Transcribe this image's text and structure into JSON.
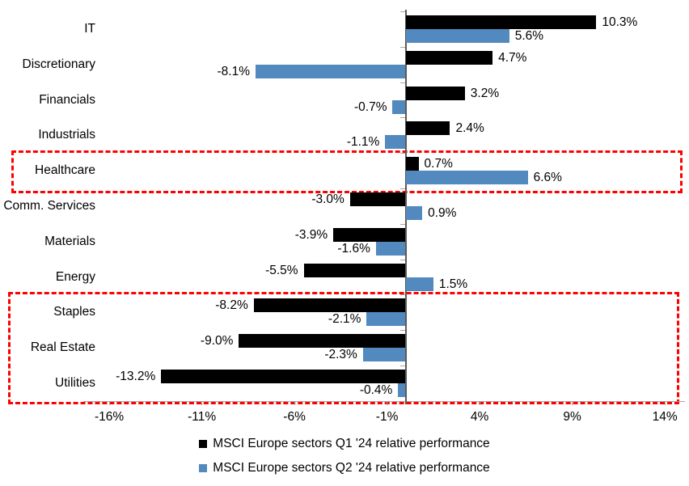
{
  "chart_data": {
    "type": "bar",
    "orientation": "horizontal",
    "title": "",
    "categories": [
      "IT",
      "Discretionary",
      "Financials",
      "Industrials",
      "Healthcare",
      "Comm. Services",
      "Materials",
      "Energy",
      "Staples",
      "Real Estate",
      "Utilities"
    ],
    "series": [
      {
        "name": "MSCI Europe sectors Q1 '24 relative performance",
        "color": "#000000",
        "values": [
          10.3,
          4.7,
          3.2,
          2.4,
          0.7,
          -3.0,
          -3.9,
          -5.5,
          -8.2,
          -9.0,
          -13.2
        ]
      },
      {
        "name": "MSCI Europe sectors Q2 '24 relative performance",
        "color": "#5289BE",
        "values": [
          5.6,
          -8.1,
          -0.7,
          -1.1,
          6.6,
          0.9,
          -1.6,
          1.5,
          -2.1,
          -2.3,
          -0.4
        ]
      }
    ],
    "data_labels": "on",
    "label_format": "one-decimal-percent",
    "x_ticks": [
      "-16%",
      "-11%",
      "-6%",
      "-1%",
      "4%",
      "9%",
      "14%"
    ],
    "x_tick_values": [
      -16,
      -11,
      -6,
      -1,
      4,
      9,
      14
    ],
    "xlim": [
      -17.4,
      15.1
    ],
    "grid": "off",
    "legend_position": "bottom",
    "axis_color": "#a6a6a6",
    "category_axis_color": "#595959"
  },
  "annotations": {
    "highlight_color": "#fe0000",
    "boxes": [
      {
        "name": "healthcare-highlight",
        "start_category": "Healthcare",
        "end_category": "Healthcare"
      },
      {
        "name": "defensives-highlight",
        "start_category": "Staples",
        "end_category": "Utilities"
      }
    ]
  }
}
